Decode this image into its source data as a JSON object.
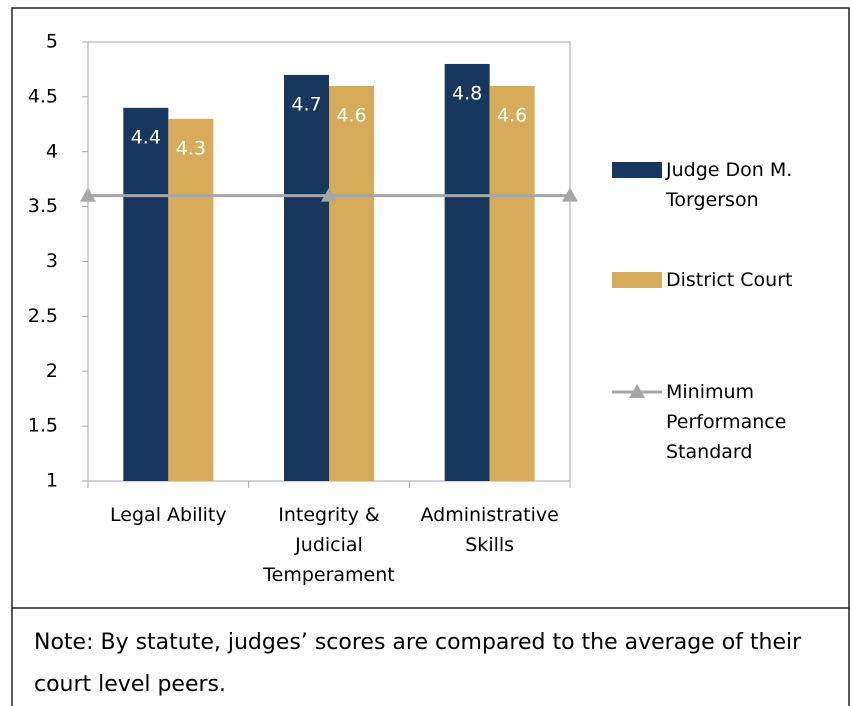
{
  "chart_data": {
    "type": "bar",
    "categories": [
      "Legal Ability",
      "Integrity & Judicial Temperament",
      "Administrative Skills"
    ],
    "series": [
      {
        "name": "Judge Don M. Torgerson",
        "color": "#17375e",
        "values": [
          4.4,
          4.7,
          4.8
        ]
      },
      {
        "name": "District Court",
        "color": "#d6ab5a",
        "values": [
          4.3,
          4.6,
          4.6
        ]
      },
      {
        "name": "Minimum Performance Standard",
        "color": "#a6a6a6",
        "type": "line",
        "values": [
          3.6,
          3.6,
          3.6
        ]
      }
    ],
    "ylim": [
      1,
      5
    ],
    "yticks": [
      1,
      1.5,
      2,
      2.5,
      3,
      3.5,
      4,
      4.5,
      5
    ],
    "grid": false,
    "legend": "right"
  },
  "note": "Note: By statute, judges’ scores are compared to the average of their court level peers."
}
